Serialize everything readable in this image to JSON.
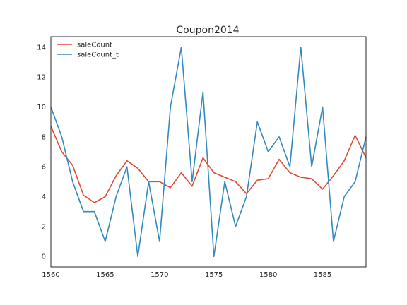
{
  "chart_data": {
    "type": "line",
    "title": "Coupon2014",
    "xlabel": "",
    "ylabel": "",
    "xlim": [
      1560,
      1589
    ],
    "ylim": [
      -0.7,
      14.7
    ],
    "xticks": [
      1560,
      1565,
      1570,
      1575,
      1580,
      1585
    ],
    "yticks": [
      0,
      2,
      4,
      6,
      8,
      10,
      12,
      14
    ],
    "grid": false,
    "legend_position": "top-left",
    "x": [
      1560,
      1561,
      1562,
      1563,
      1564,
      1565,
      1566,
      1567,
      1568,
      1569,
      1570,
      1571,
      1572,
      1573,
      1574,
      1575,
      1576,
      1577,
      1578,
      1579,
      1580,
      1581,
      1582,
      1583,
      1584,
      1585,
      1586,
      1587,
      1588,
      1589
    ],
    "series": [
      {
        "name": "saleCount",
        "color": "#e24a33",
        "values": [
          8.7,
          7.0,
          6.1,
          4.1,
          3.6,
          4.0,
          5.4,
          6.4,
          5.9,
          5.0,
          5.0,
          4.6,
          5.6,
          4.7,
          6.6,
          5.6,
          5.3,
          5.0,
          4.2,
          5.1,
          5.2,
          6.5,
          5.6,
          5.3,
          5.2,
          4.5,
          5.4,
          6.4,
          8.1,
          6.6
        ]
      },
      {
        "name": "saleCount_t",
        "color": "#348abd",
        "values": [
          10,
          8,
          5,
          3,
          3,
          1,
          4,
          6,
          0,
          5,
          1,
          10,
          14,
          5,
          11,
          0,
          5,
          2,
          4,
          9,
          7,
          8,
          6,
          14,
          6,
          10,
          1,
          4,
          5,
          8
        ]
      }
    ]
  }
}
